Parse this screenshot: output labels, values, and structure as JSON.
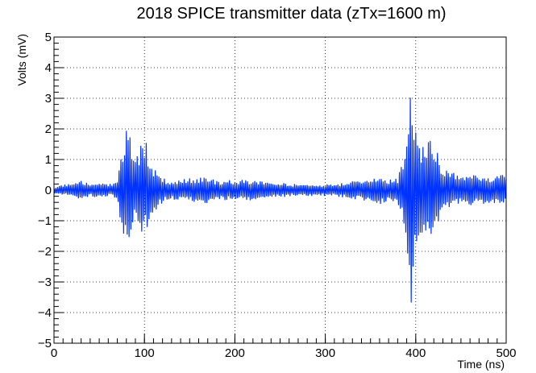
{
  "chart_data": {
    "type": "line",
    "title": "2018 SPICE transmitter data (zTx=1600 m)",
    "xlabel": "Time (ns)",
    "ylabel": "Volts (mV)",
    "xlim": [
      0,
      500
    ],
    "ylim": [
      -5,
      5
    ],
    "x_major_ticks": [
      0,
      100,
      200,
      300,
      400,
      500
    ],
    "x_tick_labels": [
      "0",
      "100",
      "200",
      "300",
      "400",
      "500"
    ],
    "x_minor_step": 10,
    "y_major_ticks": [
      -5,
      -4,
      -3,
      -2,
      -1,
      0,
      1,
      2,
      3,
      4,
      5
    ],
    "y_tick_labels": [
      "−5",
      "−4",
      "−3",
      "−2",
      "−1",
      "0",
      "1",
      "2",
      "3",
      "4",
      "5"
    ],
    "y_minor_step": 0.2,
    "grid": true,
    "line_color": "#0033ff",
    "series": [
      {
        "x": [
          0,
          10,
          20,
          30,
          40,
          50,
          60,
          70,
          76,
          78,
          80,
          82,
          84,
          86,
          88,
          90,
          92,
          94,
          96,
          98,
          100,
          102,
          104,
          106,
          108,
          110,
          115,
          120,
          130,
          140,
          150,
          160,
          170,
          180,
          190,
          200,
          210,
          220,
          230,
          240,
          250,
          260,
          270,
          280,
          290,
          300,
          310,
          320,
          330,
          340,
          350,
          360,
          370,
          380,
          385,
          388,
          390,
          391,
          392,
          393,
          394,
          395,
          396,
          397,
          398,
          399,
          400,
          402,
          404,
          406,
          408,
          410,
          412,
          414,
          416,
          418,
          420,
          425,
          430,
          440,
          450,
          460,
          470,
          480,
          490,
          500
        ],
        "y": [
          0.1,
          0.2,
          0.2,
          0.3,
          0.2,
          0.3,
          0.2,
          0.3,
          1.5,
          -1.8,
          2.2,
          -1.7,
          1.8,
          -1.3,
          1.2,
          -1.0,
          1.4,
          -0.9,
          1.5,
          -1.4,
          1.2,
          -1.6,
          1.0,
          -1.0,
          0.8,
          -0.7,
          0.6,
          0.4,
          0.3,
          0.35,
          0.4,
          0.4,
          0.5,
          0.3,
          0.35,
          0.3,
          0.35,
          0.35,
          0.3,
          0.25,
          0.25,
          0.2,
          0.2,
          0.2,
          0.2,
          0.2,
          0.2,
          0.25,
          0.3,
          0.35,
          0.4,
          0.5,
          0.35,
          0.4,
          0.9,
          -1.2,
          1.8,
          -3.2,
          2.8,
          -3.8,
          3.4,
          -4.0,
          3.0,
          -3.3,
          2.6,
          -2.2,
          2.0,
          -1.8,
          1.8,
          -1.6,
          1.5,
          -1.3,
          1.6,
          -1.8,
          1.7,
          -1.5,
          1.4,
          -1.2,
          0.8,
          0.6,
          0.45,
          0.5,
          0.5,
          0.45,
          0.5,
          0.5
        ]
      }
    ]
  }
}
